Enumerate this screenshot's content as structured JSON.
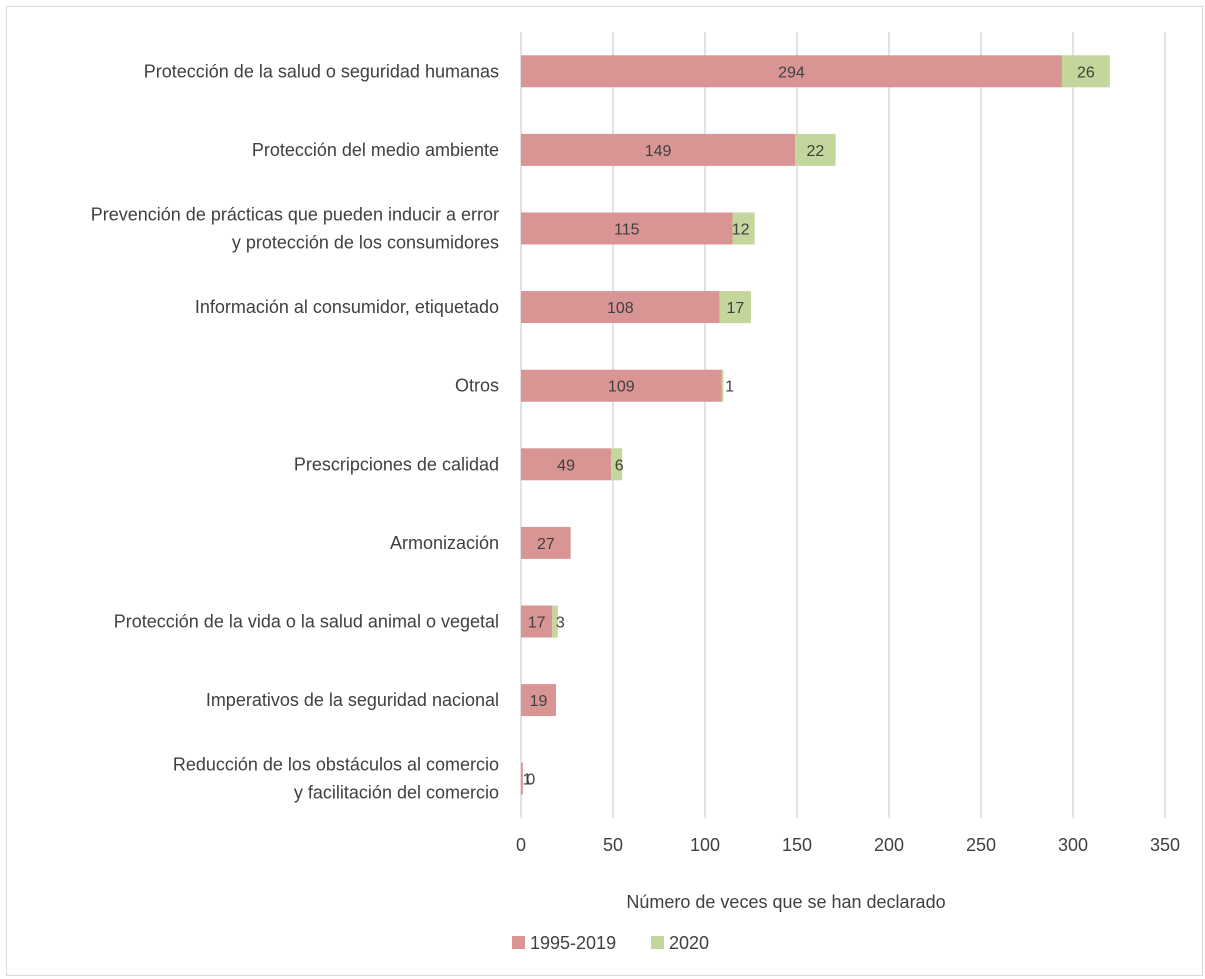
{
  "chart_data": {
    "type": "bar",
    "orientation": "horizontal",
    "stacked": true,
    "categories": [
      [
        "Protección de la salud o seguridad humanas"
      ],
      [
        "Protección del medio ambiente"
      ],
      [
        "Prevención de prácticas que pueden inducir a error",
        "y protección de los consumidores"
      ],
      [
        "Información al consumidor, etiquetado"
      ],
      [
        "Otros"
      ],
      [
        "Prescripciones de calidad"
      ],
      [
        "Armonización"
      ],
      [
        "Protección de la vida o la salud animal o vegetal"
      ],
      [
        "Imperativos de la seguridad nacional"
      ],
      [
        "Reducción de los obstáculos al comercio",
        "y facilitación del comercio"
      ]
    ],
    "series": [
      {
        "name": "1995-2019",
        "color": "#d99594",
        "values": [
          294,
          149,
          115,
          108,
          109,
          49,
          27,
          17,
          19,
          1
        ]
      },
      {
        "name": "2020",
        "color": "#c3d69b",
        "values": [
          26,
          22,
          12,
          17,
          1,
          6,
          0,
          3,
          0,
          0
        ]
      }
    ],
    "data_labels": [
      [
        "294",
        "149",
        "115",
        "108",
        "109",
        "49",
        "27",
        "17",
        "19",
        "1"
      ],
      [
        "26",
        "22",
        "12",
        "17",
        "1",
        "6",
        null,
        "3",
        null,
        "0"
      ]
    ],
    "xlim": [
      0,
      350
    ],
    "xticks": [
      "0",
      "50",
      "100",
      "150",
      "200",
      "250",
      "300",
      "350"
    ],
    "xlabel": "Número de veces que se han declarado",
    "grid": "vertical",
    "legend_position": "bottom",
    "gridline_color": "#d9d9d9"
  }
}
